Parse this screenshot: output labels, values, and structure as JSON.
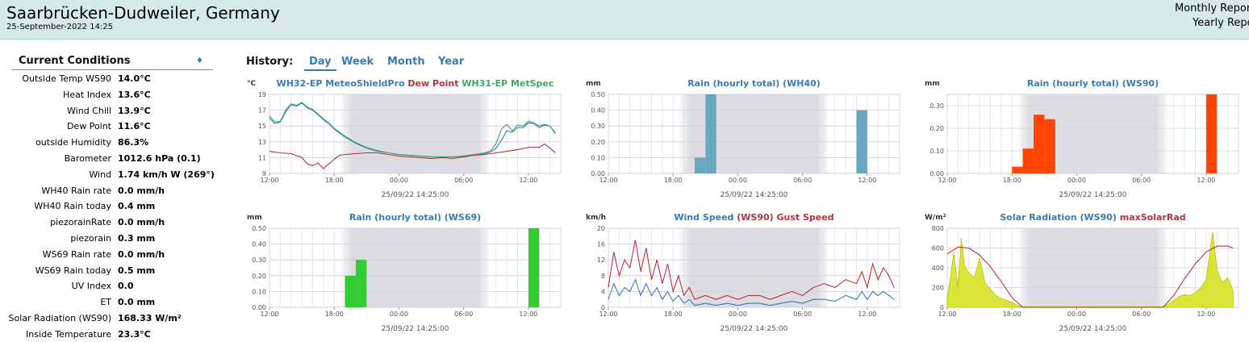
{
  "header": {
    "station": "Saarbrücken-Dudweiler, Germany",
    "datetime": "25-September-2022 14:25",
    "monthly_link": "Monthly Report",
    "yearly_link": "Yearly Report"
  },
  "sidebar": {
    "title": "Current Conditions",
    "toggle": "♦",
    "rows": [
      {
        "label": "Outside Temp WS90",
        "value": "14.0°C"
      },
      {
        "label": "Heat Index",
        "value": "13.6°C"
      },
      {
        "label": "Wind Chill",
        "value": "13.9°C"
      },
      {
        "label": "Dew Point",
        "value": "11.6°C"
      },
      {
        "label": "outside Humidity",
        "value": "86.3%"
      },
      {
        "label": "Barometer",
        "value": "1012.6 hPa (0.1)"
      },
      {
        "label": "Wind",
        "value": "1.74 km/h W (269°)"
      },
      {
        "label": "WH40 Rain rate",
        "value": "0.0 mm/h"
      },
      {
        "label": "WH40 Rain today",
        "value": "0.4 mm"
      },
      {
        "label": "piezorainRate",
        "value": "0.0 mm/h"
      },
      {
        "label": "piezorain",
        "value": "0.3 mm"
      },
      {
        "label": "WS69 Rain rate",
        "value": "0.0 mm/h"
      },
      {
        "label": "WS69 Rain today",
        "value": "0.5 mm"
      },
      {
        "label": "UV Index",
        "value": "0.0"
      },
      {
        "label": "ET",
        "value": "0.0 mm"
      },
      {
        "label": "Solar Radiation (WS90)",
        "value": "168.33 W/m²"
      },
      {
        "label": "Inside Temperature",
        "value": "23.3°C"
      }
    ]
  },
  "history": {
    "label": "History:",
    "tabs": [
      {
        "label": "Day",
        "active": true
      },
      {
        "label": "Week",
        "active": false
      },
      {
        "label": "Month",
        "active": false
      },
      {
        "label": "Year",
        "active": false
      }
    ]
  },
  "colors": {
    "header_bg": "#d7eaea",
    "link": "#3a7ab5",
    "night_band": "#dcdce2",
    "rain_blue": "#6aa8c2",
    "rain_red": "#ff4500",
    "rain_green": "#33cc33",
    "solar_yellow": "#d4e017",
    "dew_red": "#b5323a",
    "metspec_green": "#3aa86a",
    "meteoshield_blue": "#3a7ab5"
  },
  "chart_data": [
    {
      "type": "line",
      "unit": "°C",
      "title_parts": [
        {
          "text": "WH32-EP MeteoShieldPro",
          "color": "#3a7ab5"
        },
        {
          "text": "Dew Point",
          "color": "#b5323a"
        },
        {
          "text": "WH31-EP MetSpec",
          "color": "#3aa86a"
        }
      ],
      "timestamp": "25/09/22 14:25:00",
      "xticks": [
        "12:00",
        "18:00",
        "00:00",
        "06:00",
        "12:00"
      ],
      "yticks": [
        "9",
        "11",
        "13",
        "15",
        "17",
        "19"
      ],
      "ylim": [
        9,
        19
      ],
      "x_hours_range": [
        0,
        27
      ],
      "night_band": [
        6.5,
        20.5
      ],
      "series": [
        {
          "name": "WH32-EP MeteoShieldPro",
          "color": "#3a7ab5",
          "x": [
            0,
            0.5,
            1,
            1.5,
            2,
            2.5,
            3,
            3.5,
            4,
            4.5,
            5,
            5.5,
            6,
            7,
            8,
            9,
            10,
            11,
            12,
            13,
            14,
            15,
            16,
            17,
            18,
            19,
            20,
            20.5,
            21,
            21.5,
            22,
            22.5,
            23,
            23.5,
            24,
            24.5,
            25,
            25.5,
            26,
            26.5
          ],
          "y": [
            16.0,
            15.3,
            15.5,
            16.8,
            17.7,
            17.5,
            17.9,
            17.3,
            17.0,
            16.4,
            15.8,
            15.3,
            14.6,
            13.6,
            12.8,
            12.2,
            11.8,
            11.6,
            11.4,
            11.3,
            11.2,
            11.1,
            11.1,
            11.1,
            11.2,
            11.4,
            11.5,
            11.7,
            12.2,
            13.2,
            14.4,
            14.2,
            14.8,
            14.8,
            15.4,
            15.3,
            14.8,
            15.1,
            15.0,
            14.0
          ]
        },
        {
          "name": "WH31-EP MetSpec",
          "color": "#3aa86a",
          "x": [
            0,
            0.5,
            1,
            1.5,
            2,
            2.5,
            3,
            3.5,
            4,
            4.5,
            5,
            5.5,
            6,
            7,
            8,
            9,
            10,
            11,
            12,
            13,
            14,
            15,
            16,
            17,
            18,
            19,
            20,
            20.5,
            21,
            21.5,
            22,
            22.5,
            23,
            23.5,
            24,
            24.5,
            25,
            25.5,
            26,
            26.5
          ],
          "y": [
            16.3,
            15.5,
            15.6,
            17.0,
            17.8,
            17.6,
            18.0,
            17.4,
            17.1,
            16.5,
            15.9,
            15.4,
            14.7,
            13.7,
            12.9,
            12.3,
            11.9,
            11.6,
            11.4,
            11.3,
            11.2,
            11.1,
            11.1,
            11.1,
            11.2,
            11.4,
            11.6,
            11.9,
            12.8,
            14.6,
            15.2,
            14.4,
            15.1,
            15.0,
            15.6,
            15.4,
            15.0,
            15.2,
            15.0,
            14.1
          ]
        },
        {
          "name": "Dew Point",
          "color": "#b5323a",
          "x": [
            0,
            1,
            2,
            3,
            3.5,
            4,
            4.5,
            5,
            5.5,
            6,
            6.5,
            7,
            8,
            9,
            10,
            11,
            12,
            13,
            14,
            15,
            16,
            17,
            18,
            19,
            20,
            21,
            22,
            23,
            24,
            25,
            25.5,
            26,
            26.5
          ],
          "y": [
            11.8,
            11.6,
            11.5,
            11.0,
            10.2,
            10.0,
            10.3,
            9.6,
            10.2,
            10.8,
            11.3,
            11.4,
            11.5,
            11.6,
            11.6,
            11.4,
            11.2,
            11.1,
            11.0,
            10.9,
            11.0,
            10.9,
            11.1,
            11.3,
            11.4,
            11.6,
            11.8,
            12.0,
            12.3,
            12.3,
            12.7,
            12.2,
            11.6
          ]
        }
      ]
    },
    {
      "type": "bar",
      "unit": "mm",
      "title": "Rain (hourly total) (WH40)",
      "title_color": "#3a7ab5",
      "timestamp": "25/09/22 14:25:00",
      "xticks": [
        "12:00",
        "18:00",
        "00:00",
        "06:00",
        "12:00"
      ],
      "yticks": [
        "0.00",
        "0.10",
        "0.20",
        "0.30",
        "0.40",
        "0.50"
      ],
      "ylim": [
        0,
        0.5
      ],
      "x_hours_range": [
        0,
        27
      ],
      "night_band": [
        6.5,
        20.5
      ],
      "bar_color": "#6aa8c2",
      "bars": [
        {
          "hour": 8,
          "value": 0.1
        },
        {
          "hour": 9,
          "value": 0.5
        },
        {
          "hour": 23,
          "value": 0.4
        }
      ]
    },
    {
      "type": "bar",
      "unit": "mm",
      "title": "Rain (hourly total) (WS90)",
      "title_color": "#3a7ab5",
      "timestamp": "25/09/22 14:25:00",
      "xticks": [
        "12:00",
        "18:00",
        "00:00",
        "06:00",
        "12:00"
      ],
      "yticks": [
        "0.00",
        "0.10",
        "0.20",
        "0.30"
      ],
      "ylim": [
        0,
        0.35
      ],
      "x_hours_range": [
        0,
        27
      ],
      "night_band": [
        6.5,
        20.5
      ],
      "bar_color": "#ff4500",
      "bars": [
        {
          "hour": 6,
          "value": 0.03
        },
        {
          "hour": 7,
          "value": 0.11
        },
        {
          "hour": 8,
          "value": 0.26
        },
        {
          "hour": 9,
          "value": 0.24
        },
        {
          "hour": 24,
          "value": 0.35
        }
      ]
    },
    {
      "type": "bar",
      "unit": "mm",
      "title": "Rain (hourly total) (WS69)",
      "title_color": "#3a7ab5",
      "timestamp": "25/09/22 14:25:00",
      "xticks": [
        "12:00",
        "18:00",
        "00:00",
        "06:00",
        "12:00"
      ],
      "yticks": [
        "0.00",
        "0.10",
        "0.20",
        "0.30",
        "0.40",
        "0.50"
      ],
      "ylim": [
        0,
        0.5
      ],
      "x_hours_range": [
        0,
        27
      ],
      "night_band": [
        6.5,
        20.5
      ],
      "bar_color": "#33cc33",
      "bars": [
        {
          "hour": 7,
          "value": 0.2
        },
        {
          "hour": 8,
          "value": 0.3
        },
        {
          "hour": 24,
          "value": 0.5
        }
      ]
    },
    {
      "type": "line",
      "unit": "km/h",
      "title_parts": [
        {
          "text": "Wind Speed",
          "color": "#3a7ab5"
        },
        {
          "text": "(WS90) Gust Speed",
          "color": "#b5323a"
        }
      ],
      "timestamp": "25/09/22 14:25:00",
      "xticks": [
        "12:00",
        "18:00",
        "00:00",
        "06:00",
        "12:00"
      ],
      "yticks": [
        "0",
        "4",
        "8",
        "12",
        "16",
        "20"
      ],
      "ylim": [
        0,
        20
      ],
      "x_hours_range": [
        0,
        27
      ],
      "night_band": [
        6.5,
        20.5
      ],
      "series": [
        {
          "name": "Gust Speed",
          "color": "#b5323a",
          "x": [
            0,
            0.5,
            1,
            1.5,
            2,
            2.5,
            3,
            3.5,
            4,
            4.5,
            5,
            5.5,
            6,
            6.5,
            7,
            7.5,
            8,
            9,
            10,
            11,
            12,
            13,
            14,
            15,
            16,
            17,
            18,
            19,
            20,
            21,
            22,
            23,
            23.5,
            24,
            24.5,
            25,
            25.5,
            26,
            26.5
          ],
          "y": [
            5,
            14,
            8,
            12,
            10,
            17,
            9,
            15,
            7,
            12,
            6,
            11,
            4,
            8,
            3,
            5,
            2,
            3,
            2,
            3,
            2,
            3,
            3,
            2,
            3,
            4,
            3,
            5,
            6,
            5,
            7,
            6,
            9,
            5,
            11,
            7,
            10,
            8,
            5
          ]
        },
        {
          "name": "Wind Speed",
          "color": "#3a7ab5",
          "x": [
            0,
            0.5,
            1,
            1.5,
            2,
            2.5,
            3,
            3.5,
            4,
            4.5,
            5,
            5.5,
            6,
            6.5,
            7,
            7.5,
            8,
            9,
            10,
            11,
            12,
            13,
            14,
            15,
            16,
            17,
            18,
            19,
            20,
            21,
            22,
            23,
            23.5,
            24,
            24.5,
            25,
            25.5,
            26,
            26.5
          ],
          "y": [
            2,
            6,
            3,
            5,
            4,
            7,
            3,
            6,
            3,
            5,
            2,
            4,
            1.5,
            3,
            1,
            2,
            0.5,
            1,
            0.5,
            1,
            0.5,
            1,
            1,
            0.5,
            1,
            1.5,
            1,
            2,
            2,
            1.5,
            3,
            2,
            4,
            2,
            4,
            3,
            4,
            3,
            2
          ]
        }
      ]
    },
    {
      "type": "area",
      "unit": "W/m²",
      "title_parts": [
        {
          "text": "Solar Radiation (WS90)",
          "color": "#3a7ab5"
        },
        {
          "text": "maxSolarRad",
          "color": "#b5323a"
        }
      ],
      "timestamp": "25/09/22 14:25:00",
      "xticks": [
        "12:00",
        "18:00",
        "00:00",
        "06:00",
        "12:00"
      ],
      "yticks": [
        "0",
        "200",
        "400",
        "600",
        "800"
      ],
      "ylim": [
        0,
        800
      ],
      "x_hours_range": [
        0,
        27
      ],
      "night_band": [
        6.5,
        20.5
      ],
      "series": [
        {
          "name": "Solar Radiation (WS90)",
          "color": "#d4e017",
          "x": [
            0,
            0.3,
            0.6,
            1,
            1.3,
            1.6,
            2,
            2.5,
            3,
            3.5,
            4,
            4.5,
            5,
            5.5,
            6,
            6.5,
            7,
            20,
            20.5,
            21,
            21.5,
            22,
            22.5,
            23,
            23.5,
            24,
            24.3,
            24.6,
            25,
            25.5,
            26,
            26.5
          ],
          "y": [
            100,
            300,
            550,
            200,
            700,
            420,
            350,
            300,
            500,
            250,
            180,
            120,
            90,
            70,
            50,
            20,
            5,
            5,
            30,
            70,
            110,
            130,
            120,
            150,
            200,
            280,
            520,
            760,
            380,
            250,
            300,
            168
          ]
        },
        {
          "name": "maxSolarRad",
          "color": "#b5323a",
          "x": [
            0,
            1,
            2,
            3,
            4,
            5,
            6,
            7,
            20,
            21,
            22,
            23,
            24,
            25,
            26,
            26.5
          ],
          "y": [
            540,
            610,
            600,
            530,
            410,
            260,
            100,
            0,
            0,
            120,
            290,
            440,
            560,
            620,
            620,
            600
          ]
        }
      ]
    }
  ]
}
